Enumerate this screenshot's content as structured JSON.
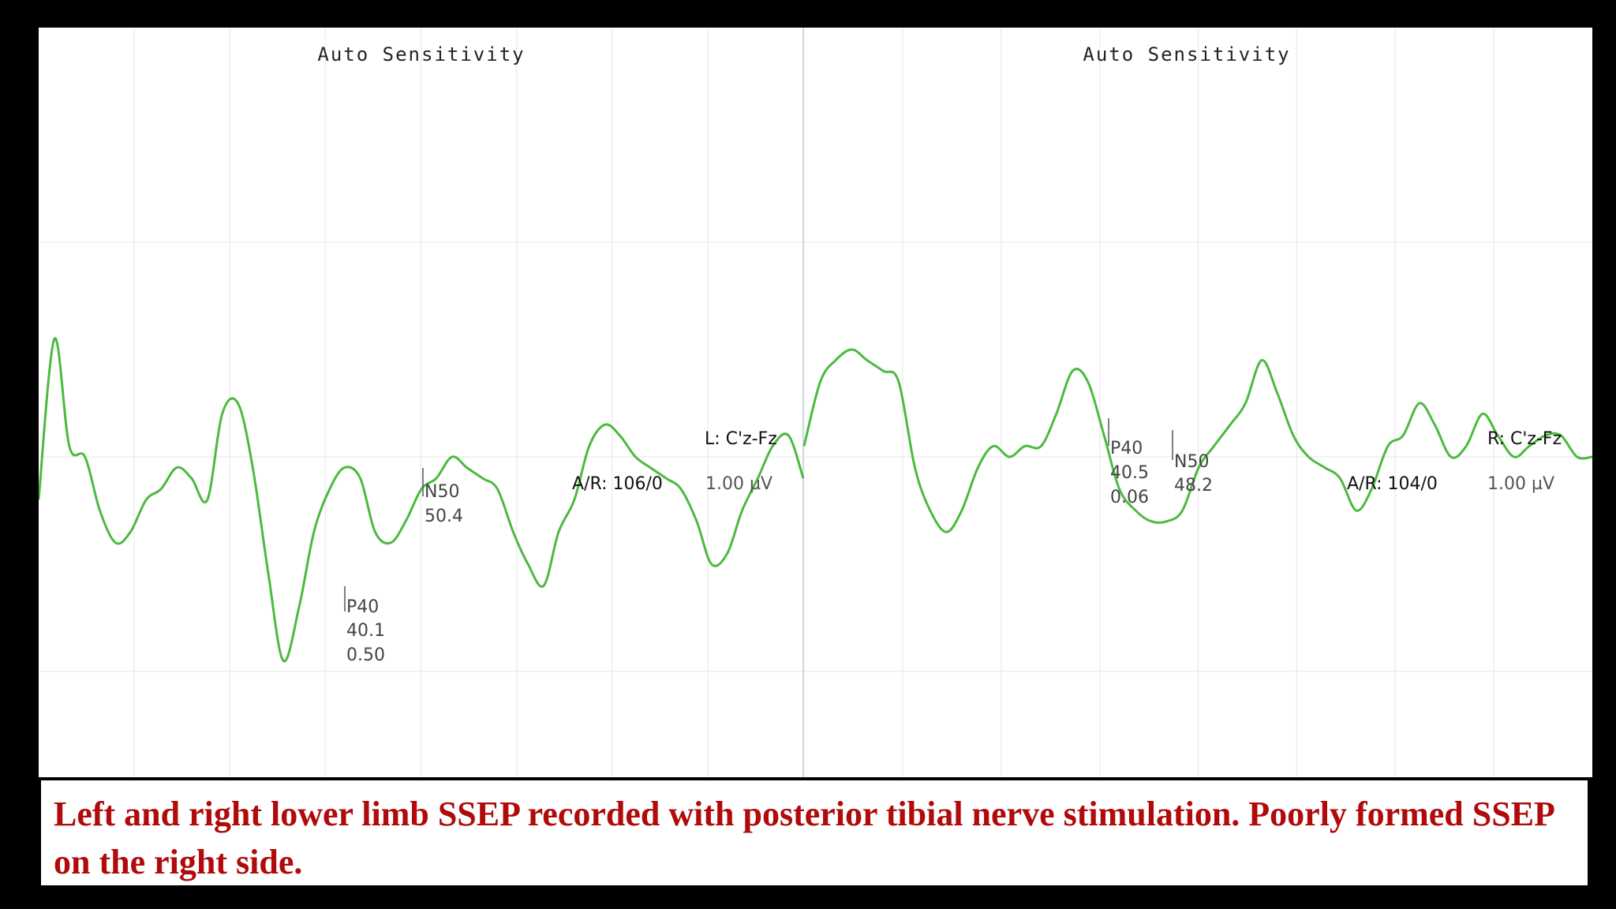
{
  "colors": {
    "trace": "#4cba3f",
    "grid": "#eeeeee",
    "divider": "#cdd6e6",
    "caption": "#b00a0a"
  },
  "caption": "Left and right lower limb SSEP recorded with posterior tibial nerve stimulation. Poorly formed SSEP on the right side.",
  "chart_data": [
    {
      "type": "line",
      "panel": "left",
      "title": "Auto Sensitivity",
      "channel": "L: C'z-Fz",
      "averages_rejects": "A/R: 106/0",
      "sensitivity": "1.00 µV",
      "x": [
        0.0,
        1.7,
        3.3,
        5.0,
        6.6,
        8.3,
        9.9,
        11.6,
        13.2,
        14.9,
        16.5,
        18.2,
        19.8,
        21.5,
        23.1,
        24.8,
        26.4,
        28.1,
        29.7,
        31.4,
        33.0,
        34.7,
        36.3,
        38.0,
        39.6,
        41.3,
        42.9,
        44.6,
        46.2,
        47.9,
        49.5,
        51.2,
        52.8,
        54.5,
        56.1,
        57.8,
        59.4,
        61.1,
        62.7,
        64.4,
        66.0,
        67.7,
        69.3,
        71.0,
        72.6,
        74.3,
        75.9,
        77.6,
        79.2,
        80.9,
        82.5
      ],
      "y": [
        -0.2,
        0.55,
        0.05,
        0.0,
        -0.25,
        -0.4,
        -0.35,
        -0.2,
        -0.15,
        -0.05,
        -0.1,
        -0.2,
        0.2,
        0.25,
        -0.05,
        -0.55,
        -0.95,
        -0.7,
        -0.35,
        -0.15,
        -0.05,
        -0.1,
        -0.35,
        -0.4,
        -0.3,
        -0.15,
        -0.1,
        0.0,
        -0.05,
        -0.1,
        -0.15,
        -0.35,
        -0.5,
        -0.6,
        -0.35,
        -0.2,
        0.05,
        0.15,
        0.1,
        0.0,
        -0.05,
        -0.1,
        -0.15,
        -0.3,
        -0.5,
        -0.45,
        -0.25,
        -0.1,
        0.05,
        0.1,
        -0.1
      ],
      "xlim": [
        0,
        82.5
      ],
      "ylim": [
        -2,
        2
      ],
      "grid": true,
      "peaks": [
        {
          "name": "P40",
          "latency": "40.1",
          "amplitude": "0.50",
          "x": 33.0,
          "y": -0.95
        },
        {
          "name": "N50",
          "latency": "50.4",
          "x": 41.3,
          "y": -0.05
        }
      ]
    },
    {
      "type": "line",
      "panel": "right",
      "title": "Auto Sensitivity",
      "channel": "R: C'z-Fz",
      "averages_rejects": "A/R: 104/0",
      "sensitivity": "1.00 µV",
      "x": [
        0.0,
        1.7,
        3.3,
        5.0,
        6.6,
        8.3,
        9.9,
        11.6,
        13.2,
        14.9,
        16.5,
        18.2,
        19.8,
        21.5,
        23.1,
        24.8,
        26.4,
        28.1,
        29.7,
        31.4,
        33.0,
        34.7,
        36.3,
        38.0,
        39.6,
        41.3,
        42.9,
        44.6,
        46.2,
        47.9,
        49.5,
        51.2,
        52.8,
        54.5,
        56.1,
        57.8,
        59.4,
        61.1,
        62.7,
        64.4,
        66.0,
        67.7,
        69.3,
        71.0,
        72.6,
        74.3,
        75.9,
        77.6,
        79.2,
        80.9,
        82.5
      ],
      "y": [
        0.05,
        0.35,
        0.45,
        0.5,
        0.45,
        0.4,
        0.35,
        -0.05,
        -0.25,
        -0.35,
        -0.25,
        -0.05,
        0.05,
        0.0,
        0.05,
        0.05,
        0.2,
        0.4,
        0.35,
        0.1,
        -0.15,
        -0.25,
        -0.3,
        -0.3,
        -0.25,
        -0.05,
        0.05,
        0.15,
        0.25,
        0.45,
        0.3,
        0.1,
        0.0,
        -0.05,
        -0.1,
        -0.25,
        -0.15,
        0.05,
        0.1,
        0.25,
        0.15,
        0.0,
        0.05,
        0.2,
        0.1,
        0.0,
        0.05,
        0.1,
        0.1,
        0.0,
        0.0
      ],
      "xlim": [
        0,
        82.5
      ],
      "ylim": [
        -2,
        2
      ],
      "grid": true,
      "peaks": [
        {
          "name": "P40",
          "latency": "40.5",
          "amplitude": "0.06",
          "x": 33.0,
          "y": 0.45
        },
        {
          "name": "N50",
          "latency": "48.2",
          "x": 39.6,
          "y": 0.2
        }
      ]
    }
  ]
}
